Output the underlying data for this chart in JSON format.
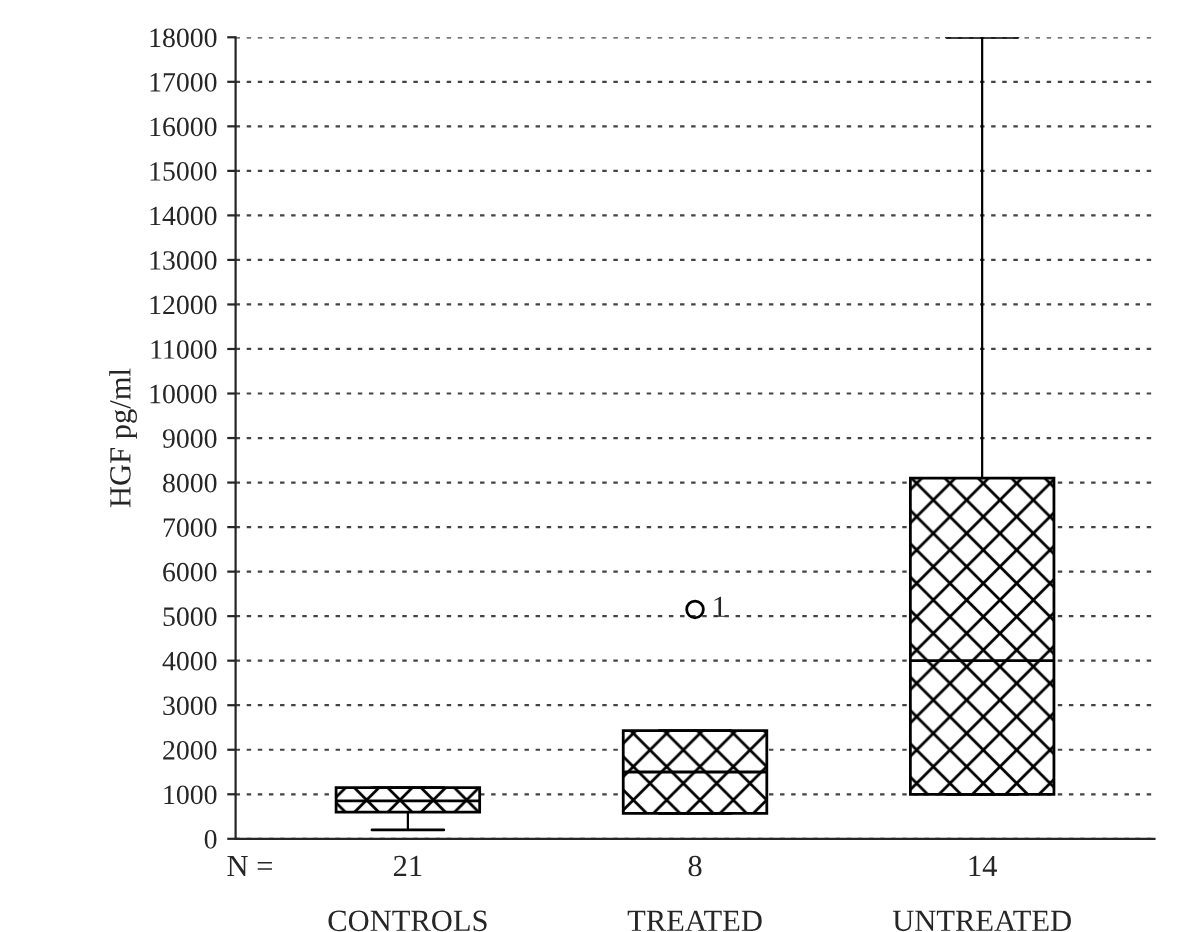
{
  "chart_data": {
    "type": "box",
    "ylabel": "HGF pg/ml",
    "categories": [
      "CONTROLS",
      "TREATED",
      "UNTREATED"
    ],
    "boxes": [
      {
        "low": 200,
        "q1": 600,
        "median": 850,
        "q3": 1150,
        "high": 1150
      },
      {
        "low": 570,
        "q1": 570,
        "median": 1500,
        "q3": 2430,
        "high": 2430,
        "outliers": [
          5150
        ]
      },
      {
        "low": 1000,
        "q1": 1000,
        "median": 4000,
        "q3": 8100,
        "high": 18000
      }
    ],
    "color": "#000000",
    "annotations": [
      "N =",
      "21",
      "8",
      "14",
      "1"
    ],
    "ylim": [
      0,
      18000
    ],
    "yticks": [
      0,
      1000,
      2000,
      3000,
      4000,
      5000,
      6000,
      7000,
      8000,
      9000,
      10000,
      11000,
      12000,
      13000,
      14000,
      15000,
      16000,
      17000,
      18000
    ],
    "grid": "y"
  }
}
